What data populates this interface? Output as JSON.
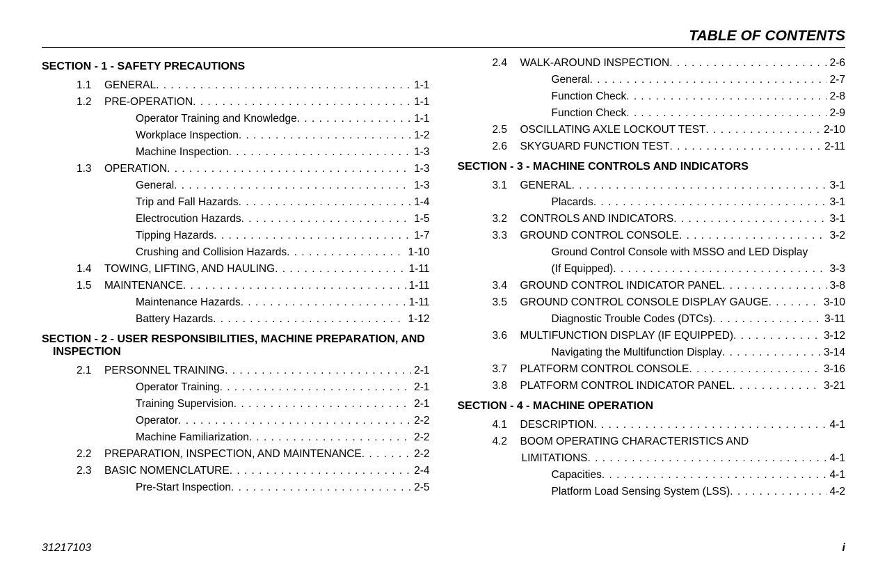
{
  "header": {
    "title": "TABLE OF CONTENTS"
  },
  "footer": {
    "docnum": "31217103",
    "pagenum": "i"
  },
  "columns": [
    {
      "entries": [
        {
          "type": "section",
          "text": "SECTION - 1 - SAFETY PRECAUTIONS"
        },
        {
          "type": "main",
          "num": "1.1",
          "text": "GENERAL",
          "page": "1-1"
        },
        {
          "type": "main",
          "num": "1.2",
          "text": "PRE-OPERATION",
          "page": "1-1"
        },
        {
          "type": "sub",
          "text": "Operator Training and Knowledge",
          "page": "1-1"
        },
        {
          "type": "sub",
          "text": "Workplace Inspection",
          "page": "1-2"
        },
        {
          "type": "sub",
          "text": "Machine Inspection",
          "page": "1-3"
        },
        {
          "type": "main",
          "num": "1.3",
          "text": "OPERATION",
          "page": "1-3"
        },
        {
          "type": "sub",
          "text": "General",
          "page": "1-3"
        },
        {
          "type": "sub",
          "text": "Trip and Fall Hazards",
          "page": "1-4"
        },
        {
          "type": "sub",
          "text": "Electrocution Hazards",
          "page": "1-5"
        },
        {
          "type": "sub",
          "text": "Tipping Hazards",
          "page": "1-7"
        },
        {
          "type": "sub",
          "text": "Crushing and Collision Hazards",
          "page": "1-10"
        },
        {
          "type": "main",
          "num": "1.4",
          "text": "TOWING, LIFTING, AND HAULING",
          "page": "1-11"
        },
        {
          "type": "main",
          "num": "1.5",
          "text": "MAINTENANCE",
          "page": "1-11"
        },
        {
          "type": "sub",
          "text": "Maintenance Hazards",
          "page": "1-11"
        },
        {
          "type": "sub",
          "text": "Battery Hazards",
          "page": "1-12"
        },
        {
          "type": "section",
          "text": "SECTION - 2 - USER RESPONSIBILITIES, MACHINE PREPARATION, AND INSPECTION"
        },
        {
          "type": "main",
          "num": "2.1",
          "text": "PERSONNEL TRAINING",
          "page": "2-1"
        },
        {
          "type": "sub",
          "text": "Operator Training",
          "page": "2-1"
        },
        {
          "type": "sub",
          "text": "Training Supervision",
          "page": "2-1"
        },
        {
          "type": "sub",
          "text": "Operator",
          "page": "2-2"
        },
        {
          "type": "sub",
          "text": "Machine Familiarization",
          "page": "2-2"
        },
        {
          "type": "main",
          "num": "2.2",
          "text": "PREPARATION, INSPECTION, AND MAINTENANCE",
          "page": "2-2"
        },
        {
          "type": "main",
          "num": "2.3",
          "text": "BASIC NOMENCLATURE",
          "page": "2-4"
        },
        {
          "type": "sub",
          "text": "Pre-Start Inspection",
          "page": "2-5"
        }
      ]
    },
    {
      "entries": [
        {
          "type": "main",
          "num": "2.4",
          "text": "WALK-AROUND INSPECTION",
          "page": "2-6"
        },
        {
          "type": "sub",
          "text": "General",
          "page": "2-7"
        },
        {
          "type": "sub",
          "text": "Function Check",
          "page": "2-8"
        },
        {
          "type": "sub",
          "text": "Function Check",
          "page": "2-9"
        },
        {
          "type": "main",
          "num": "2.5",
          "text": "OSCILLATING AXLE LOCKOUT TEST",
          "page": "2-10"
        },
        {
          "type": "main",
          "num": "2.6",
          "text": "SKYGUARD FUNCTION TEST",
          "page": "2-11"
        },
        {
          "type": "section",
          "text": "SECTION - 3 - MACHINE CONTROLS AND INDICATORS"
        },
        {
          "type": "main",
          "num": "3.1",
          "text": "GENERAL",
          "page": "3-1"
        },
        {
          "type": "sub",
          "text": "Placards",
          "page": "3-1"
        },
        {
          "type": "main",
          "num": "3.2",
          "text": "CONTROLS AND INDICATORS",
          "page": "3-1"
        },
        {
          "type": "main",
          "num": "3.3",
          "text": "GROUND CONTROL CONSOLE",
          "page": "3-2"
        },
        {
          "type": "sub-multi",
          "text": "Ground Control Console with MSSO and LED Display (If Equipped)",
          "page": "3-3"
        },
        {
          "type": "main",
          "num": "3.4",
          "text": "GROUND CONTROL INDICATOR PANEL",
          "page": "3-8"
        },
        {
          "type": "main",
          "num": "3.5",
          "text": "GROUND CONTROL CONSOLE DISPLAY GAUGE",
          "page": "3-10"
        },
        {
          "type": "sub",
          "text": "Diagnostic Trouble Codes (DTCs)",
          "page": "3-11"
        },
        {
          "type": "main",
          "num": "3.6",
          "text": "MULTIFUNCTION DISPLAY (IF EQUIPPED)",
          "page": "3-12"
        },
        {
          "type": "sub",
          "text": "Navigating the Multifunction Display",
          "page": "3-14"
        },
        {
          "type": "main",
          "num": "3.7",
          "text": "PLATFORM CONTROL CONSOLE",
          "page": "3-16"
        },
        {
          "type": "main",
          "num": "3.8",
          "text": "PLATFORM CONTROL INDICATOR PANEL",
          "page": "3-21"
        },
        {
          "type": "section",
          "text": "SECTION - 4 - MACHINE OPERATION"
        },
        {
          "type": "main",
          "num": "4.1",
          "text": "DESCRIPTION",
          "page": "4-1"
        },
        {
          "type": "main-multi",
          "num": "4.2",
          "text": "BOOM OPERATING CHARACTERISTICS AND LIMITATIONS",
          "page": "4-1"
        },
        {
          "type": "sub",
          "text": "Capacities",
          "page": "4-1"
        },
        {
          "type": "sub",
          "text": "Platform Load Sensing System (LSS)",
          "page": "4-2"
        }
      ]
    }
  ]
}
